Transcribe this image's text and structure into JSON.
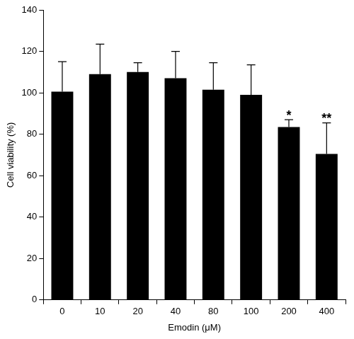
{
  "chart_data": {
    "type": "bar",
    "x_label": "Emodin (μM)",
    "y_label": "Cell viability (%)",
    "categories": [
      "0",
      "10",
      "20",
      "40",
      "80",
      "100",
      "200",
      "400"
    ],
    "values": [
      100.5,
      109,
      110,
      107,
      101.5,
      99,
      83.5,
      70.5
    ],
    "errors": [
      14.5,
      14.5,
      4.5,
      13,
      13,
      14.5,
      3.5,
      15
    ],
    "annotations": [
      {
        "category": "200",
        "text": "*"
      },
      {
        "category": "400",
        "text": "**"
      }
    ],
    "color": "#000000",
    "ylim": [
      0,
      140
    ],
    "yticks": [
      0,
      20,
      40,
      60,
      80,
      100,
      120,
      140
    ],
    "grid": false
  }
}
